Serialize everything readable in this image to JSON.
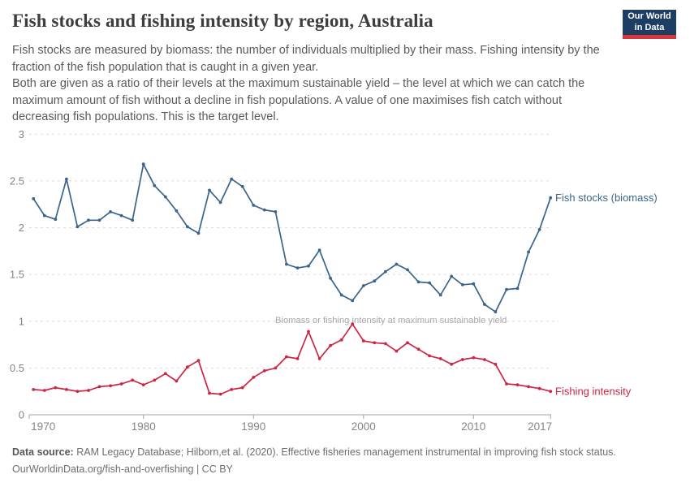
{
  "header": {
    "title": "Fish stocks and fishing intensity by region, Australia",
    "subtitle_p1": "Fish stocks are measured by biomass: the number of individuals multiplied by their mass. Fishing intensity by the fraction of the fish population that is caught in a given year.",
    "subtitle_p2": "Both are given as a ratio of their levels at the maximum sustainable yield – the level at which we can catch the maximum amount of fish without a decline in fish populations. A value of one maximises fish catch without decreasing fish populations. This is the target level.",
    "logo": {
      "line1": "Our World",
      "line2": "in Data",
      "bg_color": "#1d3d63",
      "bar_color": "#d8353f"
    }
  },
  "chart_data": {
    "type": "line",
    "title": "Fish stocks and fishing intensity by region, Australia",
    "xlabel": "",
    "ylabel": "",
    "xlim": [
      1970,
      2017
    ],
    "ylim": [
      0,
      3
    ],
    "grid": "dashed-horizontal",
    "legend_position": "end-of-line-labels",
    "x_ticks": [
      1970,
      1980,
      1990,
      2000,
      2010,
      2017
    ],
    "y_ticks": [
      0,
      0.5,
      1,
      1.5,
      2,
      2.5,
      3
    ],
    "annotation": "Biomass or fishing intensity at maximum sustainable yield",
    "annotation_value": 1,
    "years": [
      1970,
      1971,
      1972,
      1973,
      1974,
      1975,
      1976,
      1977,
      1978,
      1979,
      1980,
      1981,
      1982,
      1983,
      1984,
      1985,
      1986,
      1987,
      1988,
      1989,
      1990,
      1991,
      1992,
      1993,
      1994,
      1995,
      1996,
      1997,
      1998,
      1999,
      2000,
      2001,
      2002,
      2003,
      2004,
      2005,
      2006,
      2007,
      2008,
      2009,
      2010,
      2011,
      2012,
      2013,
      2014,
      2015,
      2016,
      2017
    ],
    "series": [
      {
        "id": "fish-stocks",
        "name": "Fish stocks (biomass)",
        "color": "#3a648c",
        "values": [
          2.31,
          2.13,
          2.09,
          2.52,
          2.01,
          2.08,
          2.08,
          2.17,
          2.13,
          2.08,
          2.68,
          2.45,
          2.33,
          2.18,
          2.01,
          1.94,
          2.4,
          2.27,
          2.52,
          2.44,
          2.24,
          2.19,
          2.17,
          1.61,
          1.57,
          1.59,
          1.76,
          1.46,
          1.28,
          1.22,
          1.38,
          1.43,
          1.53,
          1.61,
          1.55,
          1.42,
          1.41,
          1.28,
          1.48,
          1.39,
          1.4,
          1.18,
          1.1,
          1.34,
          1.35,
          1.74,
          1.98,
          2.32
        ]
      },
      {
        "id": "fishing-intensity",
        "name": "Fishing intensity",
        "color": "#cc2642",
        "values": [
          0.27,
          0.26,
          0.29,
          0.27,
          0.25,
          0.26,
          0.3,
          0.31,
          0.33,
          0.37,
          0.32,
          0.37,
          0.44,
          0.36,
          0.51,
          0.58,
          0.23,
          0.22,
          0.27,
          0.29,
          0.4,
          0.47,
          0.5,
          0.62,
          0.6,
          0.89,
          0.6,
          0.74,
          0.8,
          0.97,
          0.79,
          0.77,
          0.76,
          0.68,
          0.77,
          0.7,
          0.63,
          0.6,
          0.54,
          0.59,
          0.61,
          0.59,
          0.54,
          0.33,
          0.32,
          0.3,
          0.28,
          0.25
        ]
      }
    ]
  },
  "footer": {
    "datasource_label": "Data source:",
    "datasource_text": "RAM Legacy Database; Hilborn,et al. (2020). Effective fisheries management instrumental in improving fish stock status.",
    "license_line": "OurWorldinData.org/fish-and-overfishing | CC BY"
  }
}
